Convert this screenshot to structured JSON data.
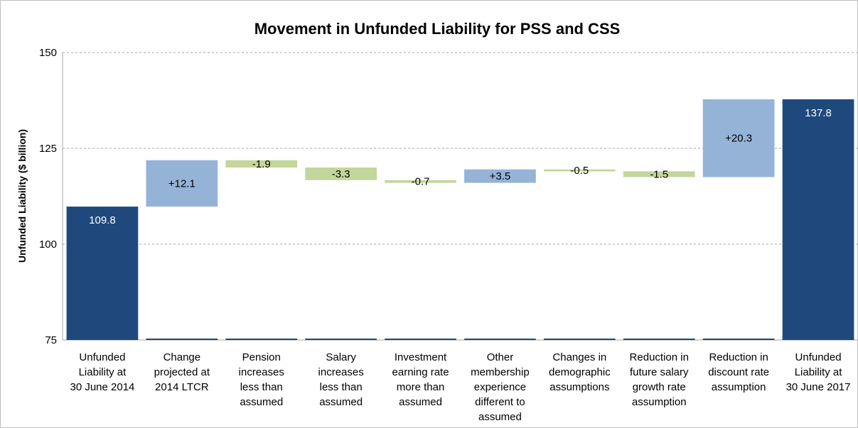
{
  "chart_data": {
    "type": "waterfall",
    "title": "Movement in Unfunded Liability for PSS and CSS",
    "y_label": "Unfunded Liability ($ billion)",
    "categories": [
      "Unfunded Liability at 30 June 2014",
      "Change projected at 2014 LTCR",
      "Pension increases less than assumed",
      "Salary increases less than assumed",
      "Investment earning rate more than assumed",
      "Other membership experience different to assumed",
      "Changes in demographic assumptions",
      "Reduction in future salary growth rate assumption",
      "Reduction in discount rate assumption",
      "Unfunded Liability at 30 June 2017"
    ],
    "values": [
      109.8,
      12.1,
      -1.9,
      -3.3,
      -0.7,
      3.5,
      -0.5,
      -1.5,
      20.3,
      137.8
    ],
    "value_labels": [
      "109.8",
      "+12.1",
      "-1.9",
      "-3.3",
      "-0.7",
      "+3.5",
      "-0.5",
      "-1.5",
      "+20.3",
      "137.8"
    ],
    "is_total": [
      true,
      false,
      false,
      false,
      false,
      false,
      false,
      false,
      false,
      true
    ],
    "total_color": "#1f497d",
    "increase_color": "#95b3d7",
    "decrease_color": "#c3d69b",
    "ylim": [
      75,
      150
    ],
    "yticks": [
      75,
      100,
      125,
      150
    ],
    "grid": true
  }
}
